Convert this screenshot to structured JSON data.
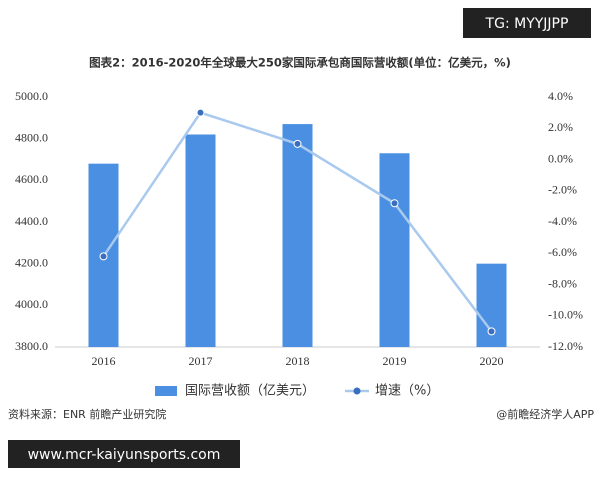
{
  "badge": "TG: MYYJJPP",
  "chart_data": {
    "type": "bar",
    "title": "图表2：2016-2020年全球最大250家国际承包商国际营收额(单位：亿美元，%)",
    "categories": [
      "2016",
      "2017",
      "2018",
      "2019",
      "2020"
    ],
    "series": [
      {
        "name": "国际营收额（亿美元）",
        "color": "#4a8fe2",
        "values": [
          4680,
          4820,
          4870,
          4730,
          4200
        ]
      },
      {
        "name": "增速（%）",
        "type": "line",
        "axis": "y2",
        "color": "#a9c9ee",
        "marker_color": "#3a6fbf",
        "values": [
          -6.2,
          3.0,
          1.0,
          -2.8,
          -11.0
        ]
      }
    ],
    "ylim": [
      3800,
      5000
    ],
    "yticks": [
      {
        "value": 3800,
        "label": "3800.0"
      },
      {
        "value": 4000,
        "label": "4000.0"
      },
      {
        "value": 4200,
        "label": "4200.0"
      },
      {
        "value": 4400,
        "label": "4400.0"
      },
      {
        "value": 4600,
        "label": "4600.0"
      },
      {
        "value": 4800,
        "label": "4800.0"
      },
      {
        "value": 5000,
        "label": "5000.0"
      }
    ],
    "y2lim": [
      -12,
      4
    ],
    "y2ticks": [
      {
        "value": -12,
        "label": "-12.0%"
      },
      {
        "value": -10,
        "label": "-10.0%"
      },
      {
        "value": -8,
        "label": "-8.0%"
      },
      {
        "value": -6,
        "label": "-6.0%"
      },
      {
        "value": -4,
        "label": "-4.0%"
      },
      {
        "value": -2,
        "label": "-2.0%"
      },
      {
        "value": 0,
        "label": "0.0%"
      },
      {
        "value": 2,
        "label": "2.0%"
      },
      {
        "value": 4,
        "label": "4.0%"
      }
    ],
    "grid": false,
    "legend": "bottom",
    "source": "资料来源：ENR 前瞻产业研究院",
    "credit": "@前瞻经济学人APP"
  },
  "footer_url": "www.mcr-kaiyunsports.com"
}
